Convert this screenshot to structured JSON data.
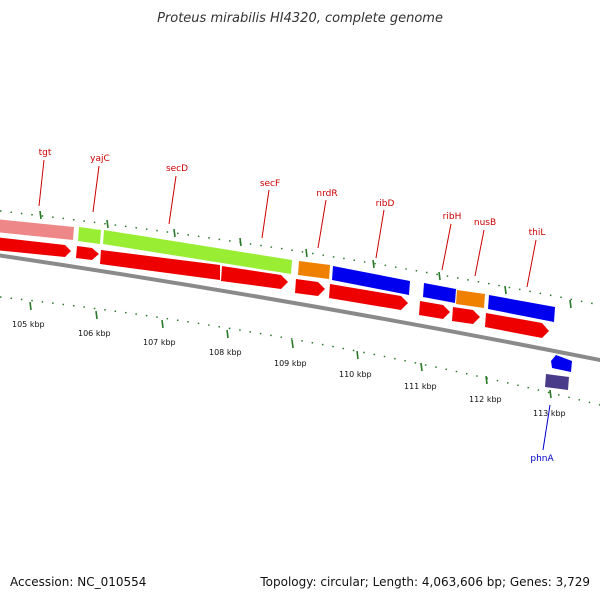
{
  "title": "Proteus mirabilis HI4320, complete genome",
  "footer": {
    "accession": "Accession: NC_010554",
    "topology": "Topology: circular; Length: 4,063,606 bp; Genes: 3,729"
  },
  "scale_labels": [
    "105 kbp",
    "106 kbp",
    "107 kbp",
    "108 kbp",
    "109 kbp",
    "110 kbp",
    "111 kbp",
    "112 kbp",
    "113 kbp"
  ],
  "gene_labels": [
    {
      "name": "tgt",
      "color": "#cc0000"
    },
    {
      "name": "yajC",
      "color": "#cc0000"
    },
    {
      "name": "secD",
      "color": "#cc0000"
    },
    {
      "name": "secF",
      "color": "#cc0000"
    },
    {
      "name": "nrdR",
      "color": "#cc0000"
    },
    {
      "name": "ribD",
      "color": "#cc0000"
    },
    {
      "name": "ribH",
      "color": "#cc0000"
    },
    {
      "name": "nusB",
      "color": "#cc0000"
    },
    {
      "name": "thiL",
      "color": "#cc0000"
    },
    {
      "name": "phnA",
      "color": "#0000cc"
    }
  ],
  "colors": {
    "backbone": "#888888",
    "cds_arrow": "#ee0000",
    "feature_blue": "#0000ee",
    "feature_orange": "#f08000",
    "feature_green": "#99ee33",
    "feature_pink": "#ee8888",
    "feature_purple": "#4a3a8a",
    "tick": "#2a7a2a"
  }
}
